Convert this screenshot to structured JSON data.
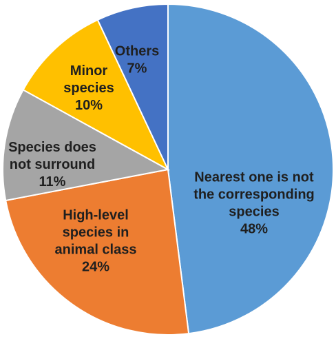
{
  "chart_data": {
    "type": "pie",
    "start_angle_deg": 0,
    "direction": "clockwise",
    "slices": [
      {
        "label_lines": [
          "Nearest one is not",
          "the corresponding",
          "species"
        ],
        "percent_label": "48%",
        "value": 48,
        "color": "#5B9BD5",
        "text_color": "#1F1F1F"
      },
      {
        "label_lines": [
          "High-level",
          "species in",
          "animal class"
        ],
        "percent_label": "24%",
        "value": 24,
        "color": "#ED7D31",
        "text_color": "#1F1F1F"
      },
      {
        "label_lines": [
          "Species does",
          "not surround"
        ],
        "percent_label": "11%",
        "value": 11,
        "color": "#A5A5A5",
        "text_color": "#1F1F1F"
      },
      {
        "label_lines": [
          "Minor",
          "species"
        ],
        "percent_label": "10%",
        "value": 10,
        "color": "#FFC000",
        "text_color": "#1F1F1F"
      },
      {
        "label_lines": [
          "Others"
        ],
        "percent_label": "7%",
        "value": 7,
        "color": "#4472C4",
        "text_color": "#1F1F1F"
      }
    ]
  }
}
